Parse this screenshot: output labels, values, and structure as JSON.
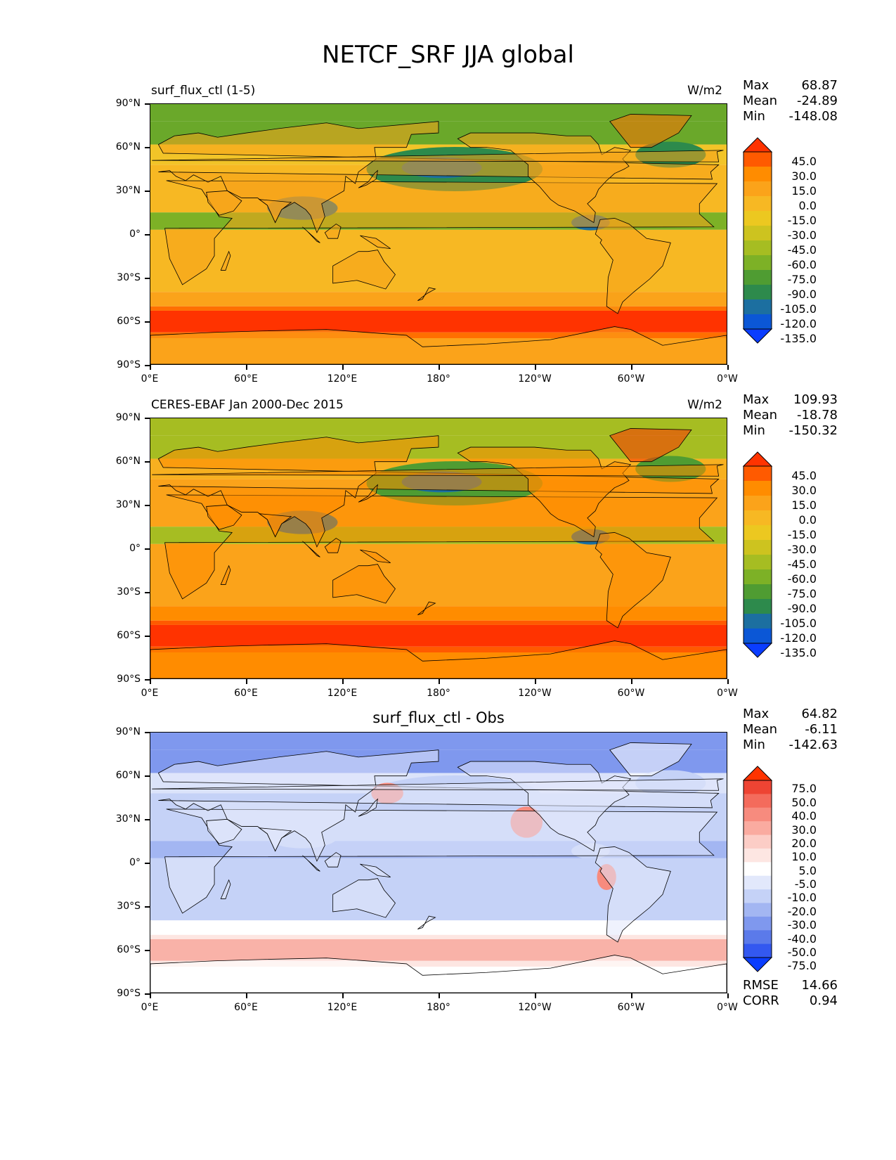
{
  "title": "NETCF_SRF JJA global",
  "lat_ticks": [
    "90°N",
    "60°N",
    "30°N",
    "0°",
    "30°S",
    "60°S",
    "90°S"
  ],
  "lon_ticks": [
    "0°E",
    "60°E",
    "120°E",
    "180°",
    "120°W",
    "60°W",
    "0°W"
  ],
  "panels": [
    {
      "label": "surf_flux_ctl (1-5)",
      "units": "W/m2",
      "stats": {
        "max_label": "Max",
        "max": "68.87",
        "mean_label": "Mean",
        "mean": "-24.89",
        "min_label": "Min",
        "min": "-148.08"
      },
      "colorbar": {
        "levels": [
          "45.0",
          "30.0",
          "15.0",
          "0.0",
          "-15.0",
          "-30.0",
          "-45.0",
          "-60.0",
          "-75.0",
          "-90.0",
          "-105.0",
          "-120.0",
          "-135.0"
        ],
        "colors": [
          "#ff3300",
          "#ff5a00",
          "#ff8c00",
          "#fba31a",
          "#f7b823",
          "#ecc820",
          "#cdc31f",
          "#a6bd22",
          "#7db126",
          "#4f9c32",
          "#2d8a4c",
          "#1c6fa0",
          "#0b57d6",
          "#0a3dff"
        ]
      },
      "map_palette": {
        "ocean_mid": "#f2c428",
        "ocean_trop": "#f7b823",
        "storm_track": "#ff3300",
        "storm_edge": "#ff6f00",
        "subpolar": "#fba31a",
        "itcz": "#7db126",
        "pacific_low": "#2d8a4c",
        "pacific_core": "#1c6fa0",
        "arctic": "#6aa82a",
        "greenland": "#ff6f00",
        "land": "#f8a21a"
      }
    },
    {
      "label": "CERES-EBAF Jan 2000-Dec 2015",
      "units": "W/m2",
      "stats": {
        "max_label": "Max",
        "max": "109.93",
        "mean_label": "Mean",
        "mean": "-18.78",
        "min_label": "Min",
        "min": "-150.32"
      },
      "colorbar": {
        "levels": [
          "45.0",
          "30.0",
          "15.0",
          "0.0",
          "-15.0",
          "-30.0",
          "-45.0",
          "-60.0",
          "-75.0",
          "-90.0",
          "-105.0",
          "-120.0",
          "-135.0"
        ],
        "colors": [
          "#ff3300",
          "#ff5a00",
          "#ff8c00",
          "#fba31a",
          "#f7b823",
          "#ecc820",
          "#cdc31f",
          "#a6bd22",
          "#7db126",
          "#4f9c32",
          "#2d8a4c",
          "#1c6fa0",
          "#0b57d6",
          "#0a3dff"
        ]
      },
      "map_palette": {
        "ocean_mid": "#f7b020",
        "ocean_trop": "#fba31a",
        "storm_track": "#ff3300",
        "storm_edge": "#ff5a00",
        "subpolar": "#ff8c00",
        "itcz": "#a6bd22",
        "pacific_low": "#4f9c32",
        "pacific_core": "#1c6fa0",
        "arctic": "#a6bd22",
        "greenland": "#ff3300",
        "land": "#ff8c00"
      }
    },
    {
      "label": "surf_flux_ctl - Obs",
      "units": "",
      "stats": {
        "max_label": "Max",
        "max": "64.82",
        "mean_label": "Mean",
        "mean": "-6.11",
        "min_label": "Min",
        "min": "-142.63"
      },
      "colorbar": {
        "levels": [
          "75.0",
          "50.0",
          "40.0",
          "30.0",
          "20.0",
          "10.0",
          "5.0",
          "-5.0",
          "-10.0",
          "-20.0",
          "-30.0",
          "-40.0",
          "-50.0",
          "-75.0"
        ],
        "colors": [
          "#ff3300",
          "#ee4433",
          "#f46b5c",
          "#f78b7e",
          "#faaba0",
          "#fccdc6",
          "#fde6e2",
          "#ffffff",
          "#e2e8fb",
          "#c5d2f7",
          "#a3b6f2",
          "#7f98ee",
          "#5b7aea",
          "#3358f0",
          "#0a3dff"
        ]
      },
      "map_palette": {
        "ocean_mid": "#dbe3fa",
        "ocean_trop": "#c5d2f7",
        "storm_track": "#f9b2a8",
        "storm_edge": "#fde6e2",
        "subpolar": "#ffffff",
        "itcz": "#a3b6f2",
        "pacific_low": "#c5d2f7",
        "pacific_core": "#c5d2f7",
        "arctic": "#7f98ee",
        "greenland": "#ffffff",
        "land": "#e2e8fb",
        "warm_patch": "#f78b7e"
      },
      "rmse_label": "RMSE",
      "rmse": "14.66",
      "corr_label": "CORR",
      "corr": "0.94"
    }
  ]
}
